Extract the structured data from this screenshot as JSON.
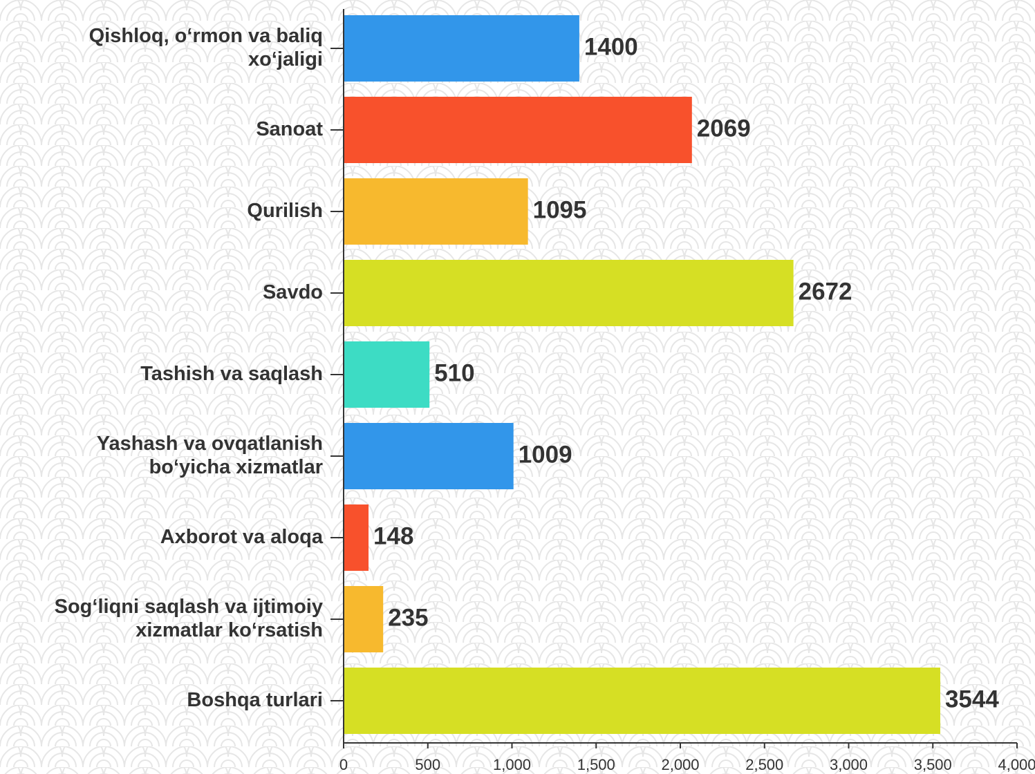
{
  "chart_data": {
    "type": "bar",
    "orientation": "horizontal",
    "categories": [
      "Qishloq, o‘rmon va baliq xo‘jaligi",
      "Sanoat",
      "Qurilish",
      "Savdo",
      "Tashish va saqlash",
      "Yashash va ovqatlanish bo‘yicha xizmatlar",
      "Axborot va aloqa",
      "Sog‘liqni saqlash va ijtimoiy xizmatlar ko‘rsatish",
      "Boshqa turlari"
    ],
    "values": [
      1400,
      2069,
      1095,
      2672,
      510,
      1009,
      148,
      235,
      3544
    ],
    "colors": [
      "#3296ea",
      "#f8512c",
      "#f7b92e",
      "#d6df24",
      "#3ddcc4",
      "#3296ea",
      "#f8512c",
      "#f7b92e",
      "#d6df24"
    ],
    "xlim": [
      0,
      4000
    ],
    "xticks": [
      0,
      500,
      {
        "value": 1000,
        "label": "1,000"
      },
      {
        "value": 1500,
        "label": "1,500"
      },
      {
        "value": 2000,
        "label": "2,000"
      },
      {
        "value": 2500,
        "label": "2,500"
      },
      {
        "value": 3000,
        "label": "3,000"
      },
      {
        "value": 3500,
        "label": "3,500"
      },
      {
        "value": 4000,
        "label": "4,000"
      }
    ],
    "grid": false
  }
}
